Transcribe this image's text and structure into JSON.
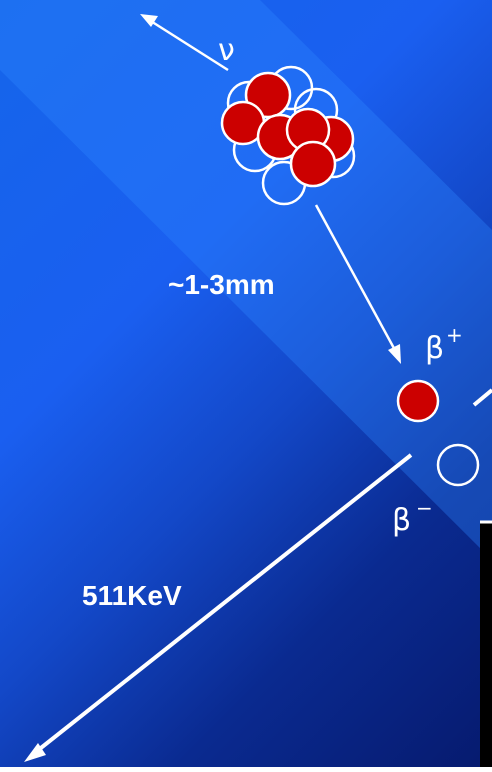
{
  "labels": {
    "neutrino": "ν",
    "range": "~1-3mm",
    "positron_symbol": "β",
    "positron_sign": "+",
    "electron_symbol": "β",
    "electron_sign": "−",
    "energy": "511KeV"
  },
  "colors": {
    "background_top": "#1a5ff0",
    "background_bottom": "#061a6e",
    "proton_red": "#cc0000",
    "line_white": "#ffffff"
  }
}
